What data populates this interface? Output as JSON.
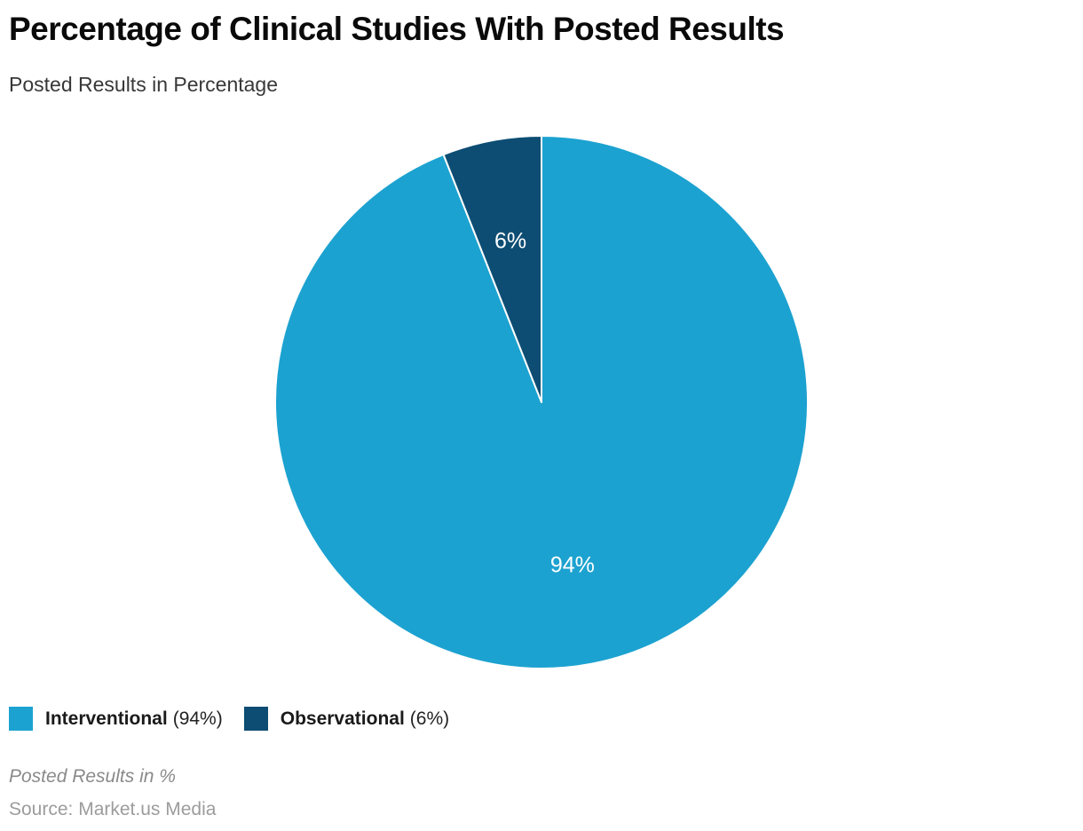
{
  "header": {
    "title": "Percentage of Clinical Studies With Posted Results",
    "subtitle": "Posted Results in Percentage"
  },
  "chart_data": {
    "type": "pie",
    "title": "Percentage of Clinical Studies With Posted Results",
    "subtitle": "Posted Results in Percentage",
    "start_angle_deg": 0,
    "direction": "clockwise",
    "slice_label_color": "#ffffff",
    "slice_border_color": "#ffffff",
    "legend_position": "bottom-left",
    "slices": [
      {
        "label": "Interventional",
        "value": 94,
        "display": "94%",
        "color": "#1CA2D0"
      },
      {
        "label": "Observational",
        "value": 6,
        "display": "6%",
        "color": "#0D4D73"
      }
    ]
  },
  "legend": {
    "items": [
      {
        "name": "Interventional",
        "value_text": "(94%)",
        "color": "#1CA2D0"
      },
      {
        "name": "Observational",
        "value_text": "(6%)",
        "color": "#0D4D73"
      }
    ]
  },
  "footer": {
    "note": "Posted Results in %",
    "source": "Source: Market.us Media"
  }
}
